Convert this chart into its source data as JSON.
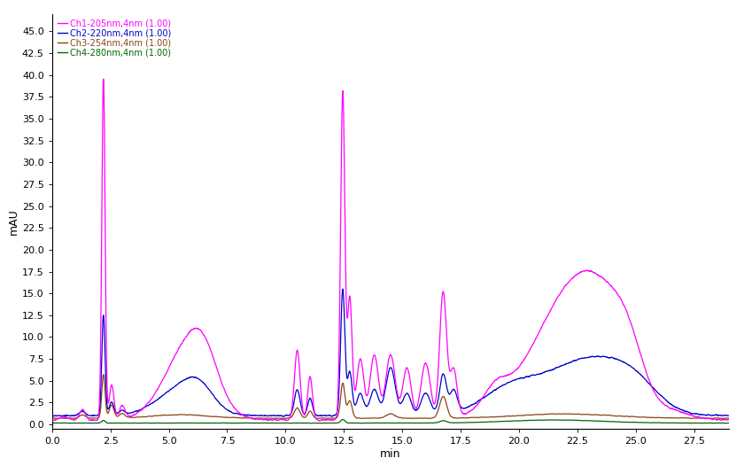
{
  "ylabel": "mAU",
  "xlabel": "min",
  "xlim": [
    0.0,
    29.0
  ],
  "ylim": [
    -0.5,
    47.0
  ],
  "xticks": [
    0.0,
    2.5,
    5.0,
    7.5,
    10.0,
    12.5,
    15.0,
    17.5,
    20.0,
    22.5,
    25.0,
    27.5
  ],
  "yticks": [
    0.0,
    2.5,
    5.0,
    7.5,
    10.0,
    12.5,
    15.0,
    17.5,
    20.0,
    22.5,
    25.0,
    27.5,
    30.0,
    32.5,
    35.0,
    37.5,
    40.0,
    42.5,
    45.0
  ],
  "legend": [
    {
      "label": "Ch1-205nm,4nm (1.00)",
      "color": "#FF00FF"
    },
    {
      "label": "Ch2-220nm,4nm (1.00)",
      "color": "#0000CC"
    },
    {
      "label": "Ch3-254nm,4nm (1.00)",
      "color": "#8B4513"
    },
    {
      "label": "Ch4-280nm,4nm (1.00)",
      "color": "#006600"
    }
  ],
  "ch1_color": "#FF00FF",
  "ch2_color": "#0000CC",
  "ch3_color": "#8B4513",
  "ch4_color": "#006600",
  "background_color": "#FFFFFF"
}
